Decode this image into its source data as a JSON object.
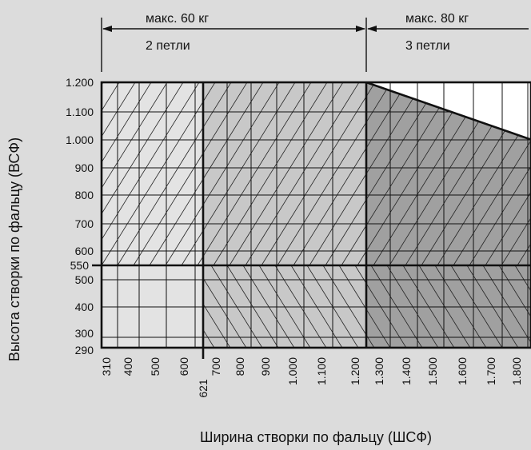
{
  "chart_data": {
    "type": "area",
    "xlabel": "Ширина створки по фальцу (ШСФ)",
    "ylabel": "Высота створки по фальцу (ВСФ)",
    "x_ticks": [
      {
        "value": 310,
        "label": "310"
      },
      {
        "value": 400,
        "label": "400"
      },
      {
        "value": 500,
        "label": "500"
      },
      {
        "value": 600,
        "label": "600"
      },
      {
        "value": 700,
        "label": "700"
      },
      {
        "value": 800,
        "label": "800"
      },
      {
        "value": 900,
        "label": "900"
      },
      {
        "value": 1000,
        "label": "1.000"
      },
      {
        "value": 1100,
        "label": "1.100"
      },
      {
        "value": 1200,
        "label": "1.200"
      },
      {
        "value": 1300,
        "label": "1.300"
      },
      {
        "value": 1400,
        "label": "1.400"
      },
      {
        "value": 1500,
        "label": "1.500"
      },
      {
        "value": 1600,
        "label": "1.600"
      },
      {
        "value": 1700,
        "label": "1.700"
      },
      {
        "value": 1800,
        "label": "1.800"
      }
    ],
    "y_ticks": [
      {
        "value": 290,
        "label": "290"
      },
      {
        "value": 300,
        "label": "300"
      },
      {
        "value": 400,
        "label": "400"
      },
      {
        "value": 500,
        "label": "500"
      },
      {
        "value": 600,
        "label": "600"
      },
      {
        "value": 700,
        "label": "700"
      },
      {
        "value": 800,
        "label": "800"
      },
      {
        "value": 900,
        "label": "900"
      },
      {
        "value": 1000,
        "label": "1.000"
      },
      {
        "value": 1100,
        "label": "1.100"
      },
      {
        "value": 1200,
        "label": "1.200"
      }
    ],
    "special_marks": {
      "x": {
        "value": 621,
        "label": "621"
      },
      "y": {
        "value": 550,
        "label": "550"
      }
    },
    "xlim": [
      265,
      1840
    ],
    "ylim": [
      290,
      1200
    ],
    "zones": [
      {
        "from": 265,
        "to": 621,
        "color": "#e3e3e3"
      },
      {
        "from": 621,
        "to": 1200,
        "color": "#c8c8c8"
      },
      {
        "from": 1200,
        "to": 1840,
        "color": "#a0a0a0"
      }
    ],
    "top_boundary": [
      {
        "x": 1200,
        "y": 1200
      },
      {
        "x": 1800,
        "y": 1005
      }
    ],
    "dimension_bars": [
      {
        "from": 265,
        "to": 1200,
        "weight": "макс. 60 кг",
        "hinges": "2 петли"
      },
      {
        "from": 1200,
        "to": 1840,
        "weight": "макс. 80 кг",
        "hinges": "3 петли"
      }
    ]
  }
}
